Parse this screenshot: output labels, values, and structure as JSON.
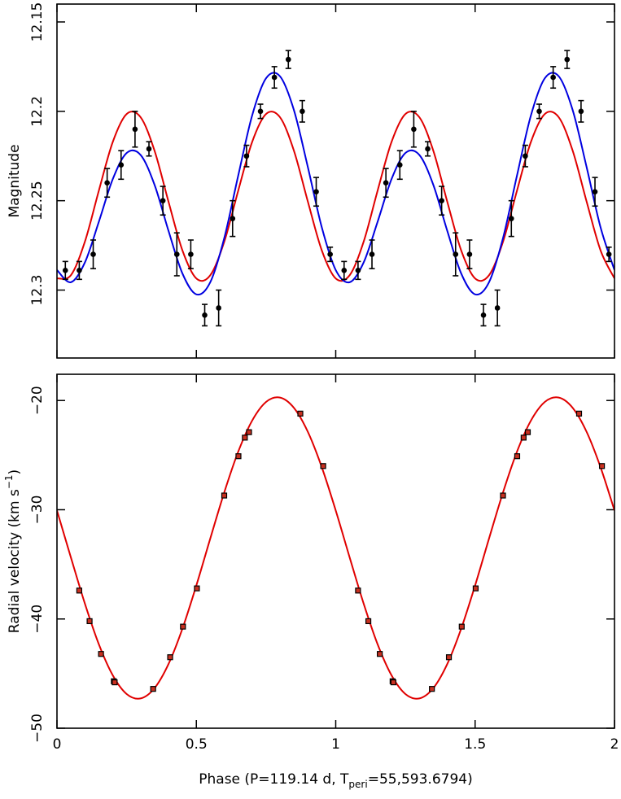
{
  "chart_data": [
    {
      "type": "phase",
      "y_label": "Magnitude",
      "xlim": [
        0,
        2
      ],
      "xticks": [
        0,
        0.5,
        1,
        1.5,
        2
      ],
      "show_xtick_labels": false,
      "ylim": [
        12.338,
        12.14
      ],
      "yticks": [
        12.15,
        12.2,
        12.25,
        12.3
      ],
      "series": [
        {
          "mode": "line",
          "color": "#e00000",
          "x": [
            0,
            0.05,
            0.1,
            0.15,
            0.2,
            0.25,
            0.3,
            0.35,
            0.4,
            0.45,
            0.5,
            0.55,
            0.6,
            0.65,
            0.7,
            0.75,
            0.8,
            0.85,
            0.9,
            0.95,
            1,
            1.05,
            1.1,
            1.15,
            1.2,
            1.25,
            1.3,
            1.35,
            1.4,
            1.45,
            1.5,
            1.55,
            1.6,
            1.65,
            1.7,
            1.75,
            1.8,
            1.85,
            1.9,
            1.95,
            2
          ],
          "values": [
            12.2935,
            12.2917,
            12.273,
            12.2445,
            12.2172,
            12.2015,
            12.2033,
            12.222,
            12.2505,
            12.2778,
            12.2935,
            12.2917,
            12.273,
            12.2445,
            12.2172,
            12.2015,
            12.2033,
            12.222,
            12.2505,
            12.2778,
            12.2935,
            12.2917,
            12.273,
            12.2445,
            12.2172,
            12.2015,
            12.2033,
            12.222,
            12.2505,
            12.2778,
            12.2935,
            12.2917,
            12.273,
            12.2445,
            12.2172,
            12.2015,
            12.2033,
            12.222,
            12.2505,
            12.2778,
            12.2935
          ]
        },
        {
          "mode": "line",
          "color": "#0000e0",
          "x": [
            0,
            0.05,
            0.1,
            0.15,
            0.2,
            0.25,
            0.3,
            0.35,
            0.4,
            0.45,
            0.5,
            0.55,
            0.6,
            0.65,
            0.7,
            0.75,
            0.8,
            0.85,
            0.9,
            0.95,
            1,
            1.05,
            1.1,
            1.15,
            1.2,
            1.25,
            1.3,
            1.35,
            1.4,
            1.45,
            1.5,
            1.55,
            1.6,
            1.65,
            1.7,
            1.75,
            1.8,
            1.85,
            1.9,
            1.95,
            2
          ],
          "values": [
            12.2888,
            12.2956,
            12.2846,
            12.2619,
            12.238,
            12.2233,
            12.2244,
            12.2411,
            12.2668,
            12.2907,
            12.3024,
            12.2956,
            12.271,
            12.2361,
            12.2024,
            12.1815,
            12.1804,
            12.1993,
            12.2312,
            12.2649,
            12.2888,
            12.2956,
            12.2846,
            12.2619,
            12.238,
            12.2233,
            12.2244,
            12.2411,
            12.2668,
            12.2907,
            12.3024,
            12.2956,
            12.271,
            12.2361,
            12.2024,
            12.1815,
            12.1804,
            12.1993,
            12.2312,
            12.2649,
            12.2888
          ]
        },
        {
          "mode": "points",
          "color": "#000000",
          "x": [
            0.03,
            0.08,
            0.13,
            0.18,
            0.23,
            0.28,
            0.33,
            0.38,
            0.43,
            0.48,
            0.53,
            0.58,
            0.63,
            0.68,
            0.73,
            0.78,
            0.83,
            0.88,
            0.93,
            0.98,
            1.03,
            1.08,
            1.13,
            1.18,
            1.23,
            1.28,
            1.33,
            1.38,
            1.43,
            1.48,
            1.53,
            1.58,
            1.63,
            1.68,
            1.73,
            1.78,
            1.83,
            1.88,
            1.93,
            1.98
          ],
          "values": [
            12.289,
            12.289,
            12.28,
            12.24,
            12.23,
            12.21,
            12.221,
            12.25,
            12.28,
            12.28,
            12.314,
            12.31,
            12.26,
            12.225,
            12.2,
            12.181,
            12.171,
            12.2,
            12.245,
            12.28,
            12.289,
            12.289,
            12.28,
            12.24,
            12.23,
            12.21,
            12.221,
            12.25,
            12.28,
            12.28,
            12.314,
            12.31,
            12.26,
            12.225,
            12.2,
            12.181,
            12.171,
            12.2,
            12.245,
            12.28
          ],
          "errors": [
            0.005,
            0.005,
            0.008,
            0.008,
            0.008,
            0.01,
            0.004,
            0.008,
            0.012,
            0.008,
            0.006,
            0.01,
            0.01,
            0.006,
            0.004,
            0.006,
            0.005,
            0.006,
            0.008,
            0.004,
            0.005,
            0.005,
            0.008,
            0.008,
            0.008,
            0.01,
            0.004,
            0.008,
            0.012,
            0.008,
            0.006,
            0.01,
            0.01,
            0.006,
            0.004,
            0.006,
            0.005,
            0.006,
            0.008,
            0.004
          ]
        }
      ]
    },
    {
      "type": "phase",
      "y_label": {
        "text": "Radial velocity (km s",
        "sup": "−1",
        "end": ")"
      },
      "x_label": {
        "text": "Phase (P=119.14 d, T",
        "sub": "peri",
        "end": "=55,593.6794)"
      },
      "xlim": [
        0,
        2
      ],
      "xticks": [
        0,
        0.5,
        1,
        1.5,
        2
      ],
      "show_xtick_labels": true,
      "ylim": [
        -50,
        -17.6
      ],
      "yticks": [
        {
          "value": -20,
          "label": "−20"
        },
        {
          "value": -30,
          "label": "−30"
        },
        {
          "value": -40,
          "label": "−40"
        },
        {
          "value": -50,
          "label": "−50"
        }
      ],
      "series": [
        {
          "mode": "line",
          "color": "#e00000",
          "x": [
            0,
            0.05,
            0.1,
            0.15,
            0.2,
            0.25,
            0.3,
            0.35,
            0.4,
            0.45,
            0.5,
            0.55,
            0.6,
            0.65,
            0.7,
            0.75,
            0.8,
            0.85,
            0.9,
            0.95,
            1,
            1.05,
            1.1,
            1.15,
            1.2,
            1.25,
            1.3,
            1.35,
            1.4,
            1.45,
            1.5,
            1.55,
            1.6,
            1.65,
            1.7,
            1.75,
            1.8,
            1.85,
            1.9,
            1.95,
            2
          ],
          "values": [
            -30.07,
            -34.37,
            -38.58,
            -42.3,
            -45.15,
            -46.87,
            -47.27,
            -46.33,
            -44.13,
            -40.89,
            -36.93,
            -32.63,
            -28.42,
            -24.7,
            -21.85,
            -20.13,
            -19.73,
            -20.67,
            -22.87,
            -26.11,
            -30.07,
            -34.37,
            -38.58,
            -42.3,
            -45.15,
            -46.87,
            -47.27,
            -46.33,
            -44.13,
            -40.89,
            -36.93,
            -32.63,
            -28.42,
            -24.7,
            -21.85,
            -20.13,
            -19.73,
            -20.67,
            -22.87,
            -26.11,
            -30.07
          ]
        },
        {
          "mode": "squares",
          "color": "#c83020",
          "x": [
            0.08,
            0.117,
            0.158,
            0.204,
            0.207,
            0.345,
            0.406,
            0.452,
            0.502,
            0.6,
            0.651,
            0.674,
            0.689,
            0.873,
            0.955,
            1.08,
            1.117,
            1.158,
            1.204,
            1.207,
            1.345,
            1.406,
            1.452,
            1.502,
            1.6,
            1.651,
            1.674,
            1.689,
            1.873,
            1.955
          ],
          "values": [
            -37.4,
            -40.2,
            -43.2,
            -45.7,
            -45.8,
            -46.4,
            -43.5,
            -40.7,
            -37.2,
            -28.7,
            -25.1,
            -23.4,
            -22.9,
            -21.2,
            -26,
            -37.4,
            -40.2,
            -43.2,
            -45.7,
            -45.8,
            -46.4,
            -43.5,
            -40.7,
            -37.2,
            -28.7,
            -25.1,
            -23.4,
            -22.9,
            -21.2,
            -26
          ]
        }
      ]
    }
  ]
}
